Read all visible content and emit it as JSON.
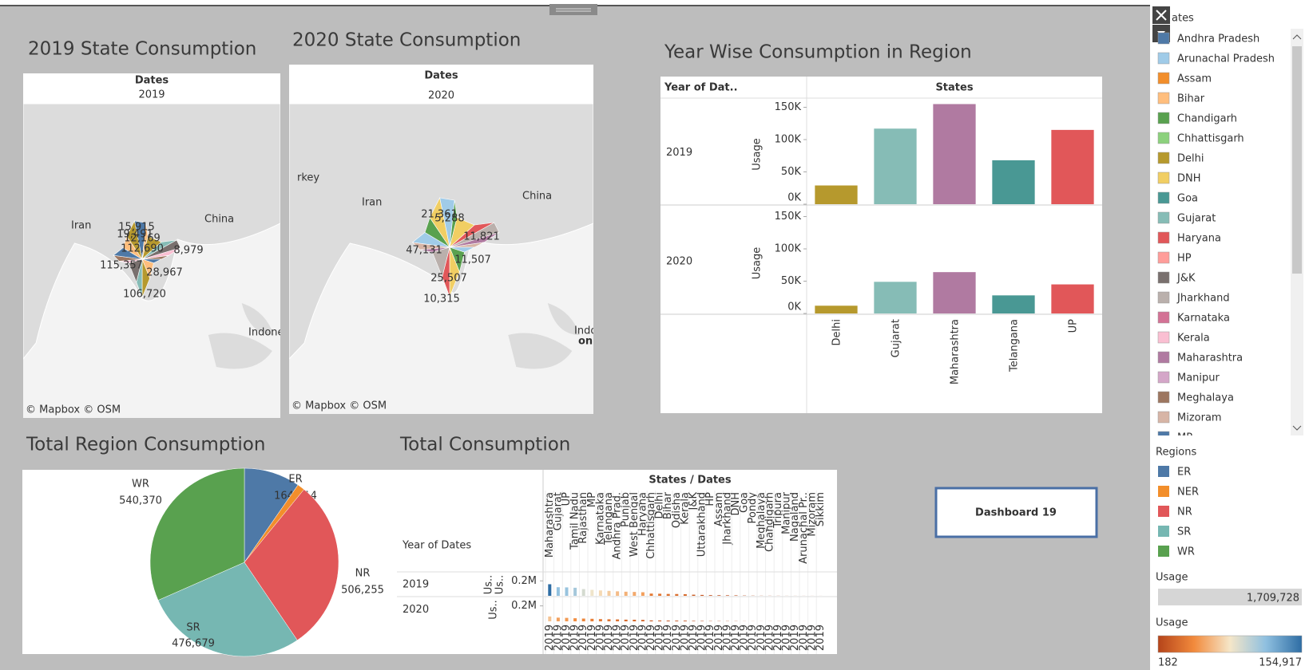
{
  "dashboard": {
    "overlay_text": "on",
    "button": "Dashboard 19"
  },
  "maps": [
    {
      "title": "2019 State Consumption",
      "header": "Dates",
      "year": "2019",
      "attribution": "© Mapbox © OSM",
      "places": [
        "Iran",
        "China",
        "Indonesia"
      ],
      "labels": [
        "15,915",
        "19,491",
        "12,169",
        "112,690",
        "8,979",
        "115,357",
        "28,967",
        "106,720"
      ]
    },
    {
      "title": "2020 State Consumption",
      "header": "Dates",
      "year": "2020",
      "attribution": "© Mapbox © OSM",
      "places": [
        "rkey",
        "Iran",
        "China",
        "Indonesia"
      ],
      "labels": [
        "21,361",
        "5,288",
        "11,821",
        "47,131",
        "11,507",
        "25,507",
        "10,315"
      ]
    }
  ],
  "chart_data": [
    {
      "type": "bar",
      "title": "Year Wise Consumption in Region",
      "row_header": "Year of Dat..",
      "column_header": "States",
      "y_label": "Usage",
      "categories": [
        "Delhi",
        "Gujarat",
        "Maharashtra",
        "Telangana",
        "UP"
      ],
      "colors": [
        "#b6992d",
        "#86bcb6",
        "#b07aa1",
        "#499894",
        "#e15759"
      ],
      "rows": [
        {
          "year": "2019",
          "values": [
            29000,
            117000,
            155000,
            68000,
            115000
          ]
        },
        {
          "year": "2020",
          "values": [
            12000,
            49000,
            64000,
            28000,
            45000
          ]
        }
      ],
      "ylim": [
        0,
        163000
      ],
      "yticks": [
        {
          "value": 0,
          "label": "0K"
        },
        {
          "value": 50000,
          "label": "50K"
        },
        {
          "value": 100000,
          "label": "100K"
        },
        {
          "value": 150000,
          "label": "150K"
        }
      ]
    },
    {
      "type": "pie",
      "title": "Total Region Consumption",
      "categories": [
        "ER",
        "NER",
        "NR",
        "SR",
        "WR"
      ],
      "values": [
        164714,
        21710,
        506255,
        476679,
        540370
      ],
      "value_labels": [
        "164,714",
        null,
        "506,255",
        "476,679",
        "540,370"
      ],
      "colors": [
        "#4e79a7",
        "#f28e2b",
        "#e15759",
        "#76b7b2",
        "#59a14f"
      ]
    },
    {
      "type": "bar",
      "title": "Total Consumption",
      "column_header": "States / Dates",
      "row_header": "Year of Dates",
      "y_label": "Us..",
      "categories": [
        "Maharashtra",
        "Gujarat",
        "UP",
        "Tamil Nadu",
        "Rajasthan",
        "MP",
        "Karnataka",
        "Telangana",
        "Andhra Prad.",
        "Punjab",
        "West Bengal",
        "Haryana",
        "Chhattisgarh",
        "Delhi",
        "Bihar",
        "Odisha",
        "Kerala",
        "J&K",
        "Uttarakhand",
        "HP",
        "Assam",
        "Jharkhand",
        "DNH",
        "Goa",
        "Pondy",
        "Meghalaya",
        "Chandigarh",
        "Tripura",
        "Manipur",
        "Nagaland",
        "Arunachal Pr..",
        "Mizoram",
        "Sikkim"
      ],
      "rows": [
        {
          "year": "2019",
          "values": [
            155000,
            115000,
            113000,
            108000,
            90000,
            80000,
            72000,
            66000,
            60000,
            55000,
            52000,
            48000,
            30000,
            28000,
            25000,
            24000,
            22000,
            15000,
            12000,
            9000,
            8000,
            7000,
            6000,
            3500,
            2400,
            1600,
            1400,
            1200,
            800,
            700,
            600,
            500,
            400
          ]
        },
        {
          "year": "2020",
          "values": [
            63000,
            48000,
            45000,
            40000,
            36000,
            33000,
            29000,
            27000,
            25000,
            22000,
            21000,
            19000,
            12000,
            11000,
            10000,
            9500,
            9000,
            6000,
            5000,
            3500,
            3200,
            2800,
            2400,
            1400,
            1000,
            700,
            600,
            500,
            350,
            300,
            250,
            210,
            182
          ]
        }
      ],
      "ylim": [
        0,
        320000
      ],
      "yticks": [
        {
          "value": 200000,
          "label": "0.2M"
        }
      ]
    }
  ],
  "legends": {
    "states": {
      "title": "ates",
      "items": [
        {
          "name": "Andhra Pradesh",
          "color": "#4e79a7"
        },
        {
          "name": "Arunachal Pradesh",
          "color": "#a0cbe8"
        },
        {
          "name": "Assam",
          "color": "#f28e2b"
        },
        {
          "name": "Bihar",
          "color": "#ffbe7d"
        },
        {
          "name": "Chandigarh",
          "color": "#59a14f"
        },
        {
          "name": "Chhattisgarh",
          "color": "#8cd17d"
        },
        {
          "name": "Delhi",
          "color": "#b6992d"
        },
        {
          "name": "DNH",
          "color": "#f1ce63"
        },
        {
          "name": "Goa",
          "color": "#499894"
        },
        {
          "name": "Gujarat",
          "color": "#86bcb6"
        },
        {
          "name": "Haryana",
          "color": "#e15759"
        },
        {
          "name": "HP",
          "color": "#ff9d9a"
        },
        {
          "name": "J&K",
          "color": "#79706e"
        },
        {
          "name": "Jharkhand",
          "color": "#bab0ac"
        },
        {
          "name": "Karnataka",
          "color": "#d37295"
        },
        {
          "name": "Kerala",
          "color": "#fabfd2"
        },
        {
          "name": "Maharashtra",
          "color": "#b07aa1"
        },
        {
          "name": "Manipur",
          "color": "#d4a6c8"
        },
        {
          "name": "Meghalaya",
          "color": "#9d7660"
        },
        {
          "name": "Mizoram",
          "color": "#d7b5a6"
        },
        {
          "name": "MP",
          "color": "#4e79a7"
        }
      ]
    },
    "regions": {
      "title": "Regions"
    },
    "usage_size": {
      "title": "Usage",
      "value": 1709728,
      "label": "1,709,728"
    },
    "usage_color": {
      "title": "Usage",
      "min": {
        "value": 182,
        "label": "182"
      },
      "max": {
        "value": 154917,
        "label": "154,917"
      },
      "colors": [
        "#b5441a",
        "#f28a3c",
        "#f5e6c8",
        "#8fc0e0",
        "#2e6da4"
      ]
    }
  }
}
